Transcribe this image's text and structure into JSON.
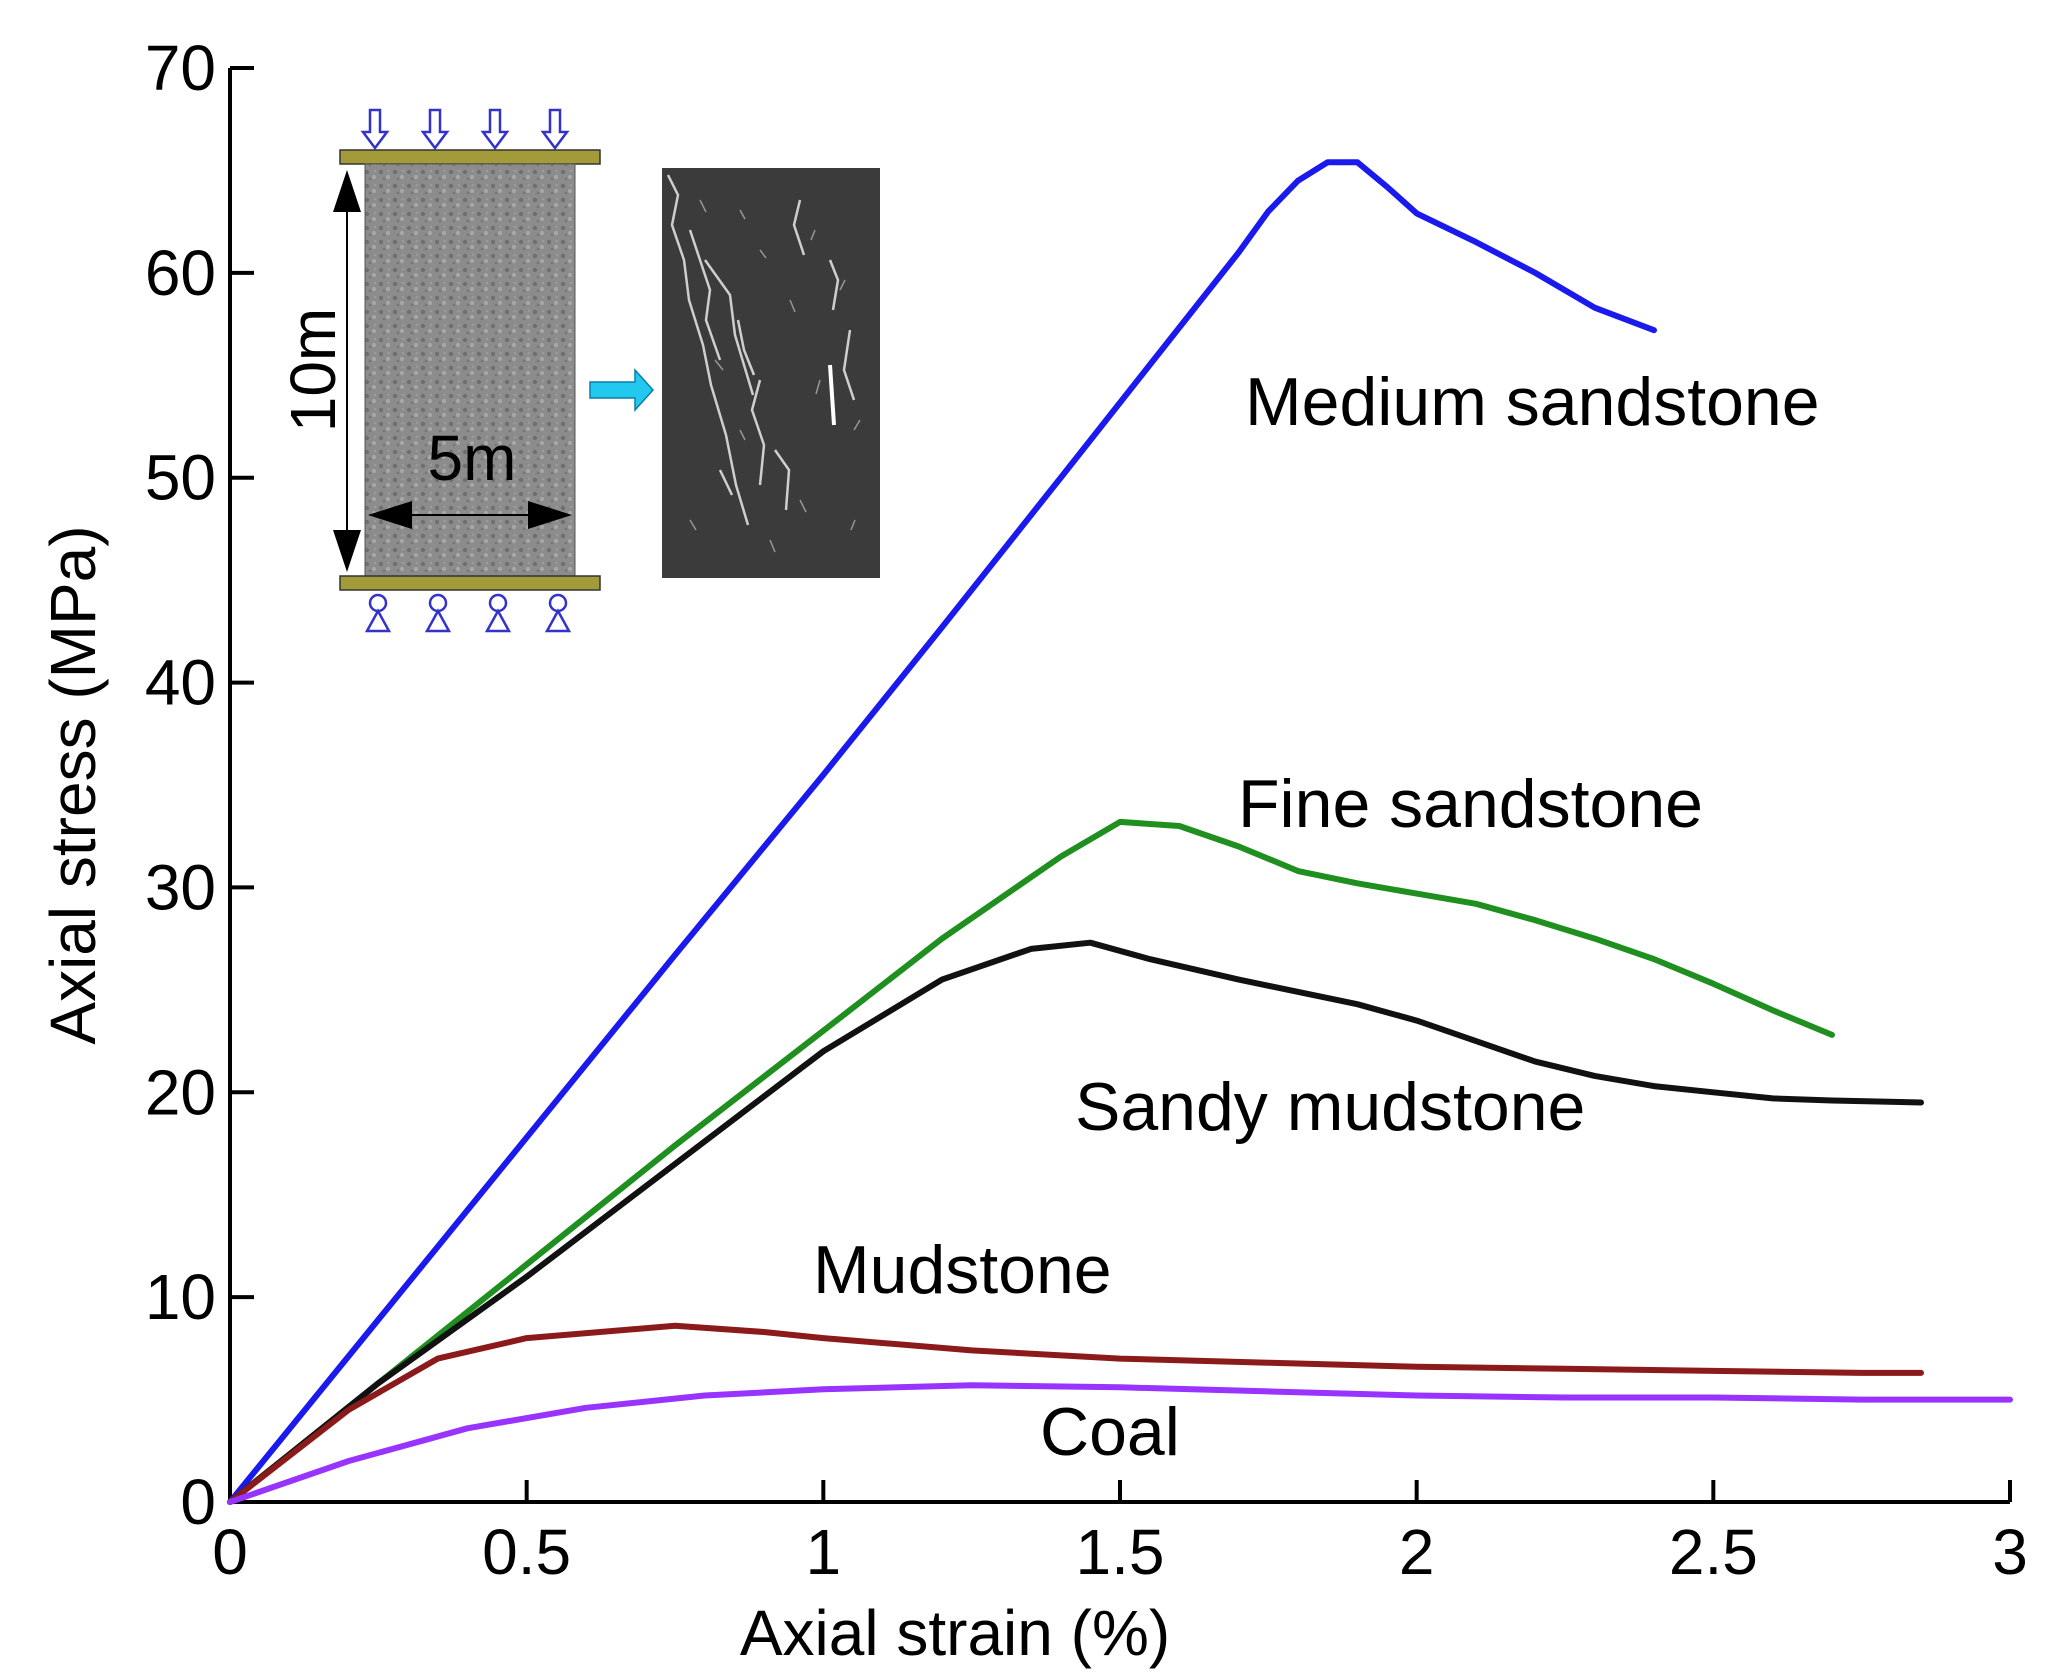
{
  "chart_data": {
    "type": "line",
    "title": "",
    "xlabel": "Axial strain (%)",
    "ylabel": "Axial stress (MPa)",
    "xlim": [
      0,
      3
    ],
    "ylim": [
      0,
      70
    ],
    "x_ticks": [
      "0",
      "0.5",
      "1",
      "1.5",
      "2",
      "2.5",
      "3"
    ],
    "y_ticks": [
      "0",
      "10",
      "20",
      "30",
      "40",
      "50",
      "60",
      "70"
    ],
    "grid": false,
    "legend": "inline labels next to curves",
    "series": [
      {
        "name": "Medium sandstone",
        "color": "#1a1aee",
        "points": [
          [
            0,
            0
          ],
          [
            0.25,
            8.9
          ],
          [
            0.5,
            17.8
          ],
          [
            0.75,
            26.7
          ],
          [
            1.0,
            35.5
          ],
          [
            1.2,
            42.7
          ],
          [
            1.4,
            50.0
          ],
          [
            1.55,
            55.5
          ],
          [
            1.7,
            61.0
          ],
          [
            1.75,
            63.0
          ],
          [
            1.8,
            64.5
          ],
          [
            1.85,
            65.4
          ],
          [
            1.9,
            65.4
          ],
          [
            1.95,
            64.2
          ],
          [
            2.0,
            62.9
          ],
          [
            2.1,
            61.5
          ],
          [
            2.2,
            60.0
          ],
          [
            2.3,
            58.3
          ],
          [
            2.4,
            57.2
          ]
        ]
      },
      {
        "name": "Fine sandstone",
        "color": "#1f8f1f",
        "points": [
          [
            0,
            0
          ],
          [
            0.25,
            5.8
          ],
          [
            0.5,
            11.6
          ],
          [
            0.75,
            17.4
          ],
          [
            1.0,
            23.0
          ],
          [
            1.2,
            27.5
          ],
          [
            1.4,
            31.5
          ],
          [
            1.5,
            33.2
          ],
          [
            1.6,
            33.0
          ],
          [
            1.7,
            32.0
          ],
          [
            1.8,
            30.8
          ],
          [
            1.9,
            30.2
          ],
          [
            2.0,
            29.7
          ],
          [
            2.1,
            29.2
          ],
          [
            2.2,
            28.4
          ],
          [
            2.3,
            27.5
          ],
          [
            2.4,
            26.5
          ],
          [
            2.5,
            25.3
          ],
          [
            2.6,
            24.0
          ],
          [
            2.7,
            22.8
          ]
        ]
      },
      {
        "name": "Sandy mudstone",
        "color": "#111111",
        "points": [
          [
            0,
            0
          ],
          [
            0.25,
            5.8
          ],
          [
            0.5,
            11.0
          ],
          [
            0.75,
            16.5
          ],
          [
            1.0,
            22.0
          ],
          [
            1.2,
            25.5
          ],
          [
            1.35,
            27.0
          ],
          [
            1.45,
            27.3
          ],
          [
            1.55,
            26.5
          ],
          [
            1.7,
            25.5
          ],
          [
            1.9,
            24.3
          ],
          [
            2.0,
            23.5
          ],
          [
            2.1,
            22.5
          ],
          [
            2.2,
            21.5
          ],
          [
            2.3,
            20.8
          ],
          [
            2.4,
            20.3
          ],
          [
            2.5,
            20.0
          ],
          [
            2.6,
            19.7
          ],
          [
            2.7,
            19.6
          ],
          [
            2.85,
            19.5
          ]
        ]
      },
      {
        "name": "Mudstone",
        "color": "#8b1a1a",
        "points": [
          [
            0,
            0
          ],
          [
            0.2,
            4.5
          ],
          [
            0.35,
            7.0
          ],
          [
            0.5,
            8.0
          ],
          [
            0.75,
            8.6
          ],
          [
            0.9,
            8.3
          ],
          [
            1.0,
            8.0
          ],
          [
            1.25,
            7.4
          ],
          [
            1.5,
            7.0
          ],
          [
            1.75,
            6.8
          ],
          [
            2.0,
            6.6
          ],
          [
            2.25,
            6.5
          ],
          [
            2.5,
            6.4
          ],
          [
            2.75,
            6.3
          ],
          [
            2.85,
            6.3
          ]
        ]
      },
      {
        "name": "Coal",
        "color": "#9933ff",
        "points": [
          [
            0,
            0
          ],
          [
            0.2,
            2.0
          ],
          [
            0.4,
            3.6
          ],
          [
            0.6,
            4.6
          ],
          [
            0.8,
            5.2
          ],
          [
            1.0,
            5.5
          ],
          [
            1.25,
            5.7
          ],
          [
            1.5,
            5.6
          ],
          [
            1.75,
            5.4
          ],
          [
            2.0,
            5.2
          ],
          [
            2.25,
            5.1
          ],
          [
            2.5,
            5.1
          ],
          [
            2.75,
            5.0
          ],
          [
            3.0,
            5.0
          ]
        ]
      }
    ],
    "inset": {
      "height_label": "10m",
      "width_label": "5m"
    }
  }
}
